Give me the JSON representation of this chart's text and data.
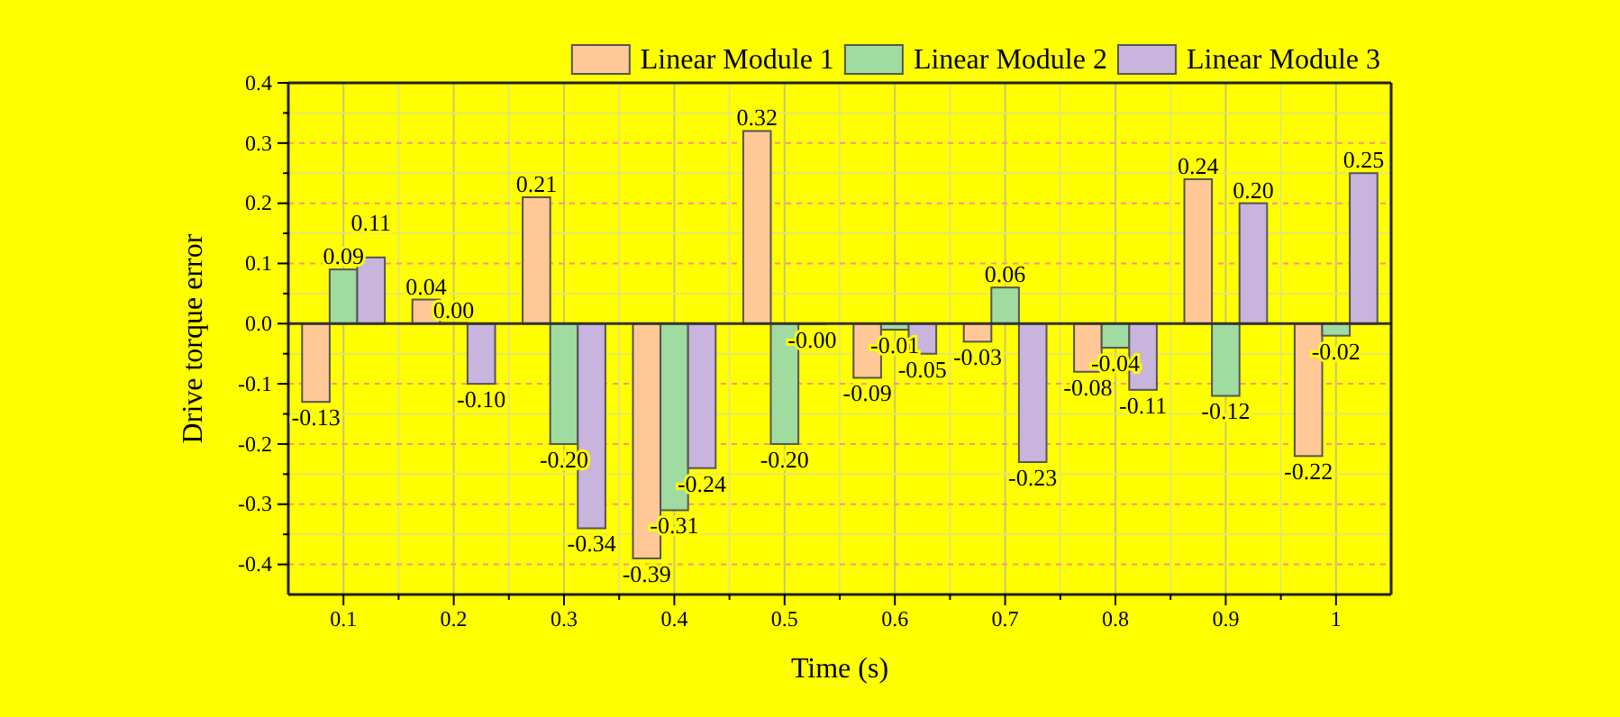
{
  "chart_data": {
    "type": "bar",
    "xlabel": "Time (s)",
    "ylabel": "Drive torque error",
    "x": [
      0.1,
      0.2,
      0.3,
      0.4,
      0.5,
      0.6,
      0.7,
      0.8,
      0.9,
      1
    ],
    "xlim": [
      0.05,
      1.05
    ],
    "xticks": [
      0.1,
      {
        "value": 0.15,
        "label": null
      },
      0.2,
      {
        "value": 0.25,
        "label": null
      },
      0.3,
      {
        "value": 0.35,
        "label": null
      },
      0.4,
      {
        "value": 0.45,
        "label": null
      },
      0.5,
      {
        "value": 0.55,
        "label": null
      },
      0.6,
      {
        "value": 0.65,
        "label": null
      },
      0.7,
      {
        "value": 0.75,
        "label": null
      },
      0.8,
      {
        "value": 0.85,
        "label": null
      },
      0.9,
      {
        "value": 0.95,
        "label": null
      },
      1
    ],
    "ylim": [
      -0.45,
      0.4
    ],
    "yticks": [
      -0.4,
      {
        "value": -0.35,
        "label": null
      },
      -0.3,
      {
        "value": -0.25,
        "label": null
      },
      -0.2,
      {
        "value": -0.15,
        "label": null
      },
      -0.1,
      {
        "value": -0.05,
        "label": null
      },
      {
        "value": 0,
        "label": "0.0"
      },
      {
        "value": 0.05,
        "label": null
      },
      0.1,
      {
        "value": 0.15,
        "label": null
      },
      0.2,
      {
        "value": 0.25,
        "label": null
      },
      0.3,
      {
        "value": 0.35,
        "label": null
      },
      0.4
    ],
    "grid": true,
    "legend": "top right",
    "ref_lines": [
      {
        "axis": "y",
        "value": 0,
        "color": "#333333"
      }
    ],
    "series": [
      {
        "name": "Linear Module 1",
        "color": "#ffc896",
        "values": [
          -0.13,
          0.04,
          0.21,
          -0.39,
          0.32,
          -0.09,
          -0.03,
          -0.08,
          0.24,
          -0.22
        ],
        "value_labels": [
          "-0.13",
          "0.04",
          "0.21",
          "-0.39",
          "0.32",
          "-0.09",
          "-0.03",
          "-0.08",
          "0.24",
          "-0.22"
        ]
      },
      {
        "name": "Linear Module 2",
        "color": "#a0dca0",
        "values": [
          0.09,
          0.001,
          -0.2,
          -0.31,
          -0.2,
          -0.01,
          0.06,
          -0.04,
          -0.12,
          -0.02
        ],
        "value_labels": [
          "0.09",
          "0.00",
          "-0.20",
          "-0.31",
          "-0.20",
          "-0.01",
          "0.06",
          "-0.04",
          "-0.12",
          "-0.02"
        ]
      },
      {
        "name": "Linear Module 3",
        "color": "#c8b4dc",
        "values": [
          0.11,
          -0.1,
          -0.34,
          -0.24,
          -0.001,
          -0.05,
          -0.23,
          -0.11,
          0.2,
          0.25
        ],
        "value_labels": [
          "0.11",
          "-0.10",
          "-0.34",
          "-0.24",
          "-0.00",
          "-0.05",
          "-0.23",
          "-0.11",
          "0.20",
          "0.25"
        ]
      }
    ]
  }
}
